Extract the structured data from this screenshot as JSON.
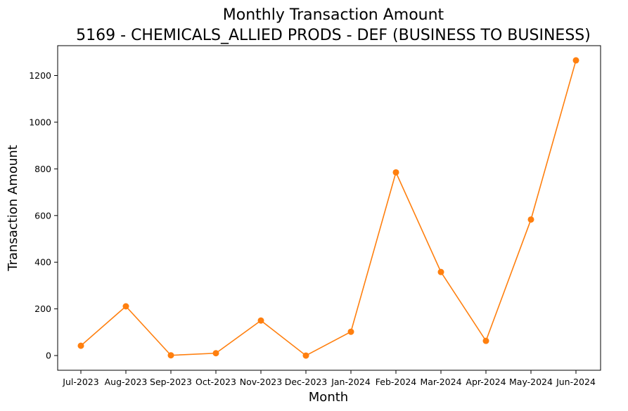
{
  "chart_data": {
    "type": "line",
    "title": "Monthly Transaction Amount",
    "subtitle": "5169 - CHEMICALS_ALLIED PRODS - DEF (BUSINESS TO BUSINESS)",
    "xlabel": "Month",
    "ylabel": "Transaction Amount",
    "categories": [
      "Jul-2023",
      "Aug-2023",
      "Sep-2023",
      "Oct-2023",
      "Nov-2023",
      "Dec-2023",
      "Jan-2024",
      "Feb-2024",
      "Mar-2024",
      "Apr-2024",
      "May-2024",
      "Jun-2024"
    ],
    "series": [
      {
        "color": "#ff7f0e",
        "values": [
          42,
          211,
          1,
          10,
          150,
          0,
          102,
          785,
          358,
          63,
          583,
          1265
        ]
      }
    ],
    "yticks": [
      0,
      200,
      400,
      600,
      800,
      1000,
      1200
    ],
    "ylim": [
      -63,
      1328
    ],
    "grid": false,
    "legend": "none"
  }
}
